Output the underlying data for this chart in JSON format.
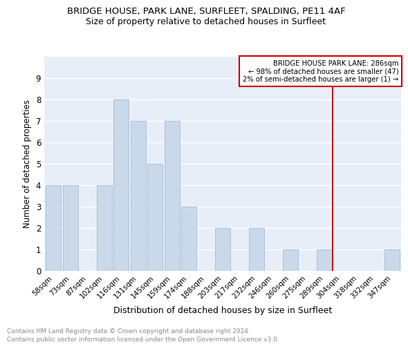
{
  "title": "BRIDGE HOUSE, PARK LANE, SURFLEET, SPALDING, PE11 4AF",
  "subtitle": "Size of property relative to detached houses in Surfleet",
  "xlabel": "Distribution of detached houses by size in Surfleet",
  "ylabel": "Number of detached properties",
  "categories": [
    "58sqm",
    "73sqm",
    "87sqm",
    "102sqm",
    "116sqm",
    "131sqm",
    "145sqm",
    "159sqm",
    "174sqm",
    "188sqm",
    "203sqm",
    "217sqm",
    "232sqm",
    "246sqm",
    "260sqm",
    "275sqm",
    "289sqm",
    "304sqm",
    "318sqm",
    "332sqm",
    "347sqm"
  ],
  "values": [
    4,
    4,
    0,
    4,
    8,
    7,
    5,
    7,
    3,
    0,
    2,
    0,
    2,
    0,
    1,
    0,
    1,
    0,
    0,
    0,
    1
  ],
  "bar_color": "#c9d9ea",
  "bar_edgecolor": "#a8c0d8",
  "vline_idx": 16,
  "vline_color": "#cc0000",
  "vline_label": "BRIDGE HOUSE PARK LANE: 286sqm",
  "annotation_line1": "← 98% of detached houses are smaller (47)",
  "annotation_line2": "2% of semi-detached houses are larger (1) →",
  "box_color": "#cc0000",
  "ylim": [
    0,
    10
  ],
  "yticks": [
    0,
    1,
    2,
    3,
    4,
    5,
    6,
    7,
    8,
    9,
    10
  ],
  "background_color": "#e8eef8",
  "grid_color": "#ffffff",
  "footer": "Contains HM Land Registry data © Crown copyright and database right 2024.\nContains public sector information licensed under the Open Government Licence v3.0.",
  "title_fontsize": 9.5,
  "subtitle_fontsize": 9,
  "axis_label_fontsize": 8.5,
  "tick_fontsize": 7.5,
  "footer_fontsize": 6.5
}
